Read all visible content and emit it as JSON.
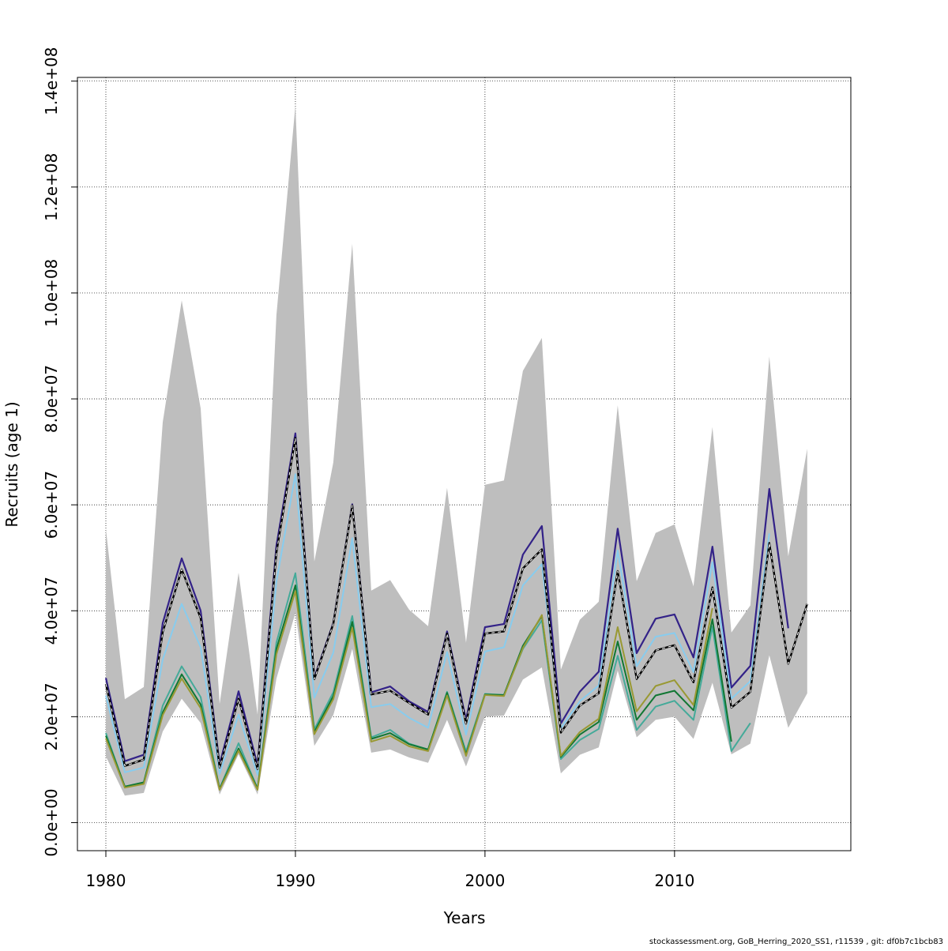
{
  "footer": "stockassessment.org, GoB_Herring_2020_SS1, r11539 , git: df0b7c1bcb83",
  "chart_data": {
    "type": "line",
    "title": "",
    "xlabel": "Years",
    "ylabel": "Recruits (age 1)",
    "xlim": [
      1978.5,
      2019.3
    ],
    "ylim": [
      -5300000,
      140700000
    ],
    "xticks": [
      1980,
      1990,
      2000,
      2010
    ],
    "xtick_labels": [
      "1980",
      "1990",
      "2000",
      "2010"
    ],
    "yticks": [
      0,
      20000000,
      40000000,
      60000000,
      80000000,
      100000000,
      120000000,
      140000000
    ],
    "ytick_labels": [
      "0.0e+00",
      "2.0e+07",
      "4.0e+07",
      "6.0e+07",
      "8.0e+07",
      "1.0e+08",
      "1.2e+08",
      "1.4e+08"
    ],
    "grid": true,
    "band": {
      "color": "#bebebe",
      "x": [
        1980,
        1981,
        1982,
        1983,
        1984,
        1985,
        1986,
        1987,
        1988,
        1989,
        1990,
        1991,
        1992,
        1993,
        1994,
        1995,
        1996,
        1997,
        1998,
        1999,
        2000,
        2001,
        2002,
        2003,
        2004,
        2005,
        2006,
        2007,
        2008,
        2009,
        2010,
        2011,
        2012,
        2013,
        2014,
        2015,
        2016,
        2017
      ],
      "lower": [
        12500000,
        5100000,
        5600000,
        17200000,
        23400000,
        18800000,
        5300000,
        12900000,
        5300000,
        27200000,
        39600000,
        14500000,
        20300000,
        32800000,
        13200000,
        13800000,
        12300000,
        11300000,
        19400000,
        10600000,
        20000000,
        20200000,
        27000000,
        29300000,
        9300000,
        12800000,
        14200000,
        28700000,
        16100000,
        19400000,
        20000000,
        15800000,
        26400000,
        12900000,
        14900000,
        31600000,
        17900000,
        24400000
      ],
      "upper": [
        55500000,
        23300000,
        25600000,
        75600000,
        98600000,
        78200000,
        22400000,
        47200000,
        20400000,
        95800000,
        135400000,
        49300000,
        68000000,
        109300000,
        43800000,
        45800000,
        40200000,
        37100000,
        63200000,
        34000000,
        63800000,
        64600000,
        85300000,
        91500000,
        28900000,
        38300000,
        41700000,
        78800000,
        45600000,
        54700000,
        56300000,
        44600000,
        74700000,
        35900000,
        41000000,
        88000000,
        50300000,
        70600000
      ]
    },
    "x": [
      1980,
      1981,
      1982,
      1983,
      1984,
      1985,
      1986,
      1987,
      1988,
      1989,
      1990,
      1991,
      1992,
      1993,
      1994,
      1995,
      1996,
      1997,
      1998,
      1999,
      2000,
      2001,
      2002,
      2003,
      2004,
      2005,
      2006,
      2007,
      2008,
      2009,
      2010,
      2011,
      2012,
      2013,
      2014,
      2015,
      2016,
      2017
    ],
    "series": [
      {
        "color": "#000000",
        "dashed": true,
        "width": 2.2,
        "values": [
          26200000,
          10700000,
          11900000,
          36000000,
          47800000,
          38600000,
          10400000,
          23400000,
          10100000,
          51000000,
          72600000,
          27100000,
          37500000,
          59900000,
          24200000,
          24900000,
          22600000,
          20400000,
          35700000,
          18700000,
          35700000,
          36100000,
          48000000,
          51600000,
          17000000,
          22100000,
          24400000,
          47500000,
          27100000,
          32500000,
          33500000,
          26500000,
          44400000,
          21700000,
          24700000,
          52800000,
          30000000,
          41300000
        ]
      },
      {
        "color": "#332288",
        "dashed": false,
        "width": 2.2,
        "values": [
          27300000,
          11600000,
          12800000,
          37700000,
          49900000,
          40000000,
          11000000,
          24800000,
          10800000,
          52300000,
          73500000,
          27400000,
          37700000,
          60100000,
          24600000,
          25700000,
          22900000,
          20900000,
          36100000,
          19400000,
          36900000,
          37500000,
          50600000,
          56000000,
          18700000,
          24700000,
          28500000,
          55500000,
          32000000,
          38500000,
          39300000,
          31200000,
          52100000,
          25500000,
          29600000,
          63000000,
          36700000,
          null
        ]
      },
      {
        "color": "#88CCEE",
        "dashed": false,
        "width": 2.0,
        "values": [
          24000000,
          9500000,
          10400000,
          30800000,
          41300000,
          33100000,
          9200000,
          20400000,
          9000000,
          45500000,
          65800000,
          23600000,
          32100000,
          53700000,
          21800000,
          22400000,
          19800000,
          17900000,
          32200000,
          16600000,
          32300000,
          33100000,
          44800000,
          48800000,
          17800000,
          22900000,
          25900000,
          51400000,
          29500000,
          35100000,
          35800000,
          28400000,
          49200000,
          23400000,
          26700000,
          54600000,
          null,
          null
        ]
      },
      {
        "color": "#44AA99",
        "dashed": false,
        "width": 2.0,
        "values": [
          16900000,
          6800000,
          7600000,
          22100000,
          29500000,
          23700000,
          6400000,
          15000000,
          6400000,
          34000000,
          47100000,
          17600000,
          24600000,
          39000000,
          16100000,
          17500000,
          14900000,
          13800000,
          24700000,
          13400000,
          24300000,
          24100000,
          32800000,
          38200000,
          12000000,
          15600000,
          17700000,
          31500000,
          17500000,
          21900000,
          23000000,
          19400000,
          37000000,
          13500000,
          18800000,
          null,
          null,
          null
        ]
      },
      {
        "color": "#117733",
        "dashed": false,
        "width": 2.0,
        "values": [
          16400000,
          6800000,
          7600000,
          20800000,
          28000000,
          22300000,
          6400000,
          14000000,
          6400000,
          32800000,
          44800000,
          17100000,
          23900000,
          37900000,
          15800000,
          16900000,
          14800000,
          13800000,
          24500000,
          12900000,
          24200000,
          24100000,
          33400000,
          39000000,
          12400000,
          16600000,
          19000000,
          34200000,
          19400000,
          24000000,
          24900000,
          21200000,
          38400000,
          15300000,
          null,
          null,
          null,
          null
        ]
      },
      {
        "color": "#999933",
        "dashed": false,
        "width": 2.0,
        "values": [
          15900000,
          6600000,
          7300000,
          20300000,
          27200000,
          21600000,
          6200000,
          13600000,
          6200000,
          31800000,
          43700000,
          16700000,
          23300000,
          36800000,
          15300000,
          16400000,
          14400000,
          13500000,
          24000000,
          12600000,
          24100000,
          23900000,
          33000000,
          39200000,
          12600000,
          17100000,
          19600000,
          36900000,
          21000000,
          25800000,
          26900000,
          22200000,
          40500000,
          null,
          null,
          null,
          null,
          null
        ]
      }
    ]
  }
}
